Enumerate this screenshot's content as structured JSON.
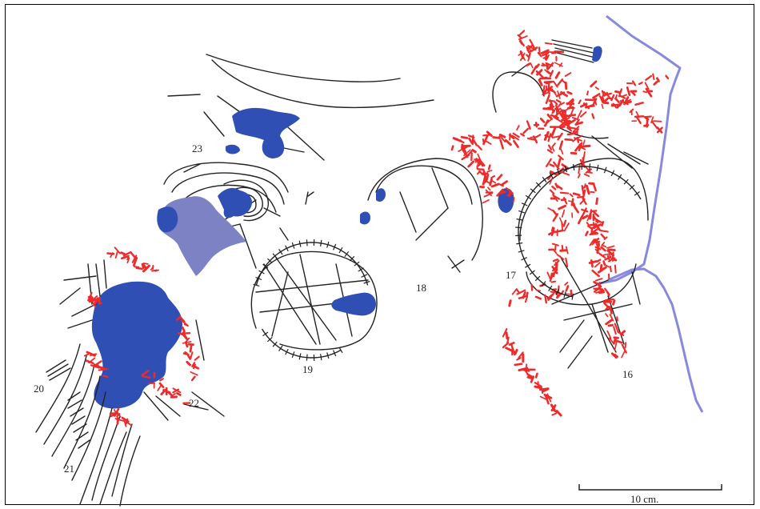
{
  "colors": {
    "line": "#222222",
    "blue": "#2f4fb5",
    "light_blue": "#7d82c4",
    "red": "#ee2a2a",
    "border": "#8888dd"
  },
  "figures": [
    {
      "id": "16",
      "label": "16"
    },
    {
      "id": "17",
      "label": "17"
    },
    {
      "id": "18",
      "label": "18"
    },
    {
      "id": "19",
      "label": "19"
    },
    {
      "id": "20",
      "label": "20"
    },
    {
      "id": "21",
      "label": "21"
    },
    {
      "id": "22",
      "label": "22"
    },
    {
      "id": "23",
      "label": "23"
    }
  ],
  "scale_bar": {
    "label": "10 cm."
  }
}
